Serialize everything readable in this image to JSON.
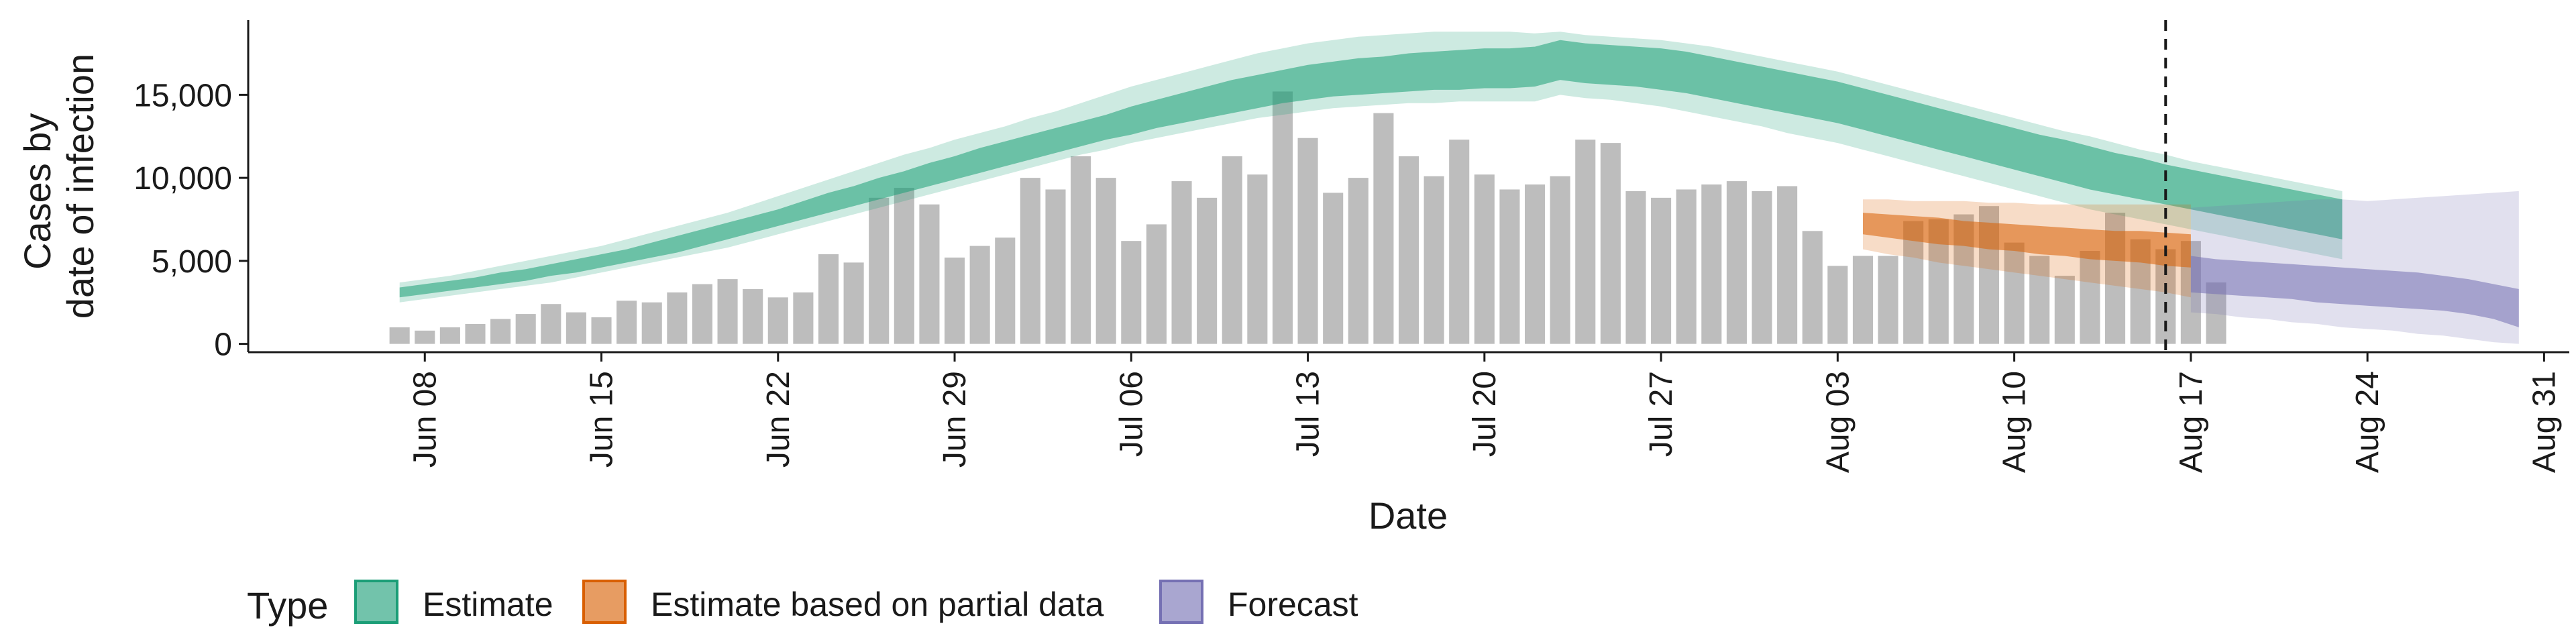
{
  "chart_data": {
    "type": "bar+area",
    "xlabel": "Date",
    "ylabel_lines": [
      "Cases by",
      "date of infection"
    ],
    "x_range": [
      "2020-06-01",
      "2020-09-01"
    ],
    "ylim": [
      -500,
      19500
    ],
    "y_ticks": [
      0,
      5000,
      10000,
      15000
    ],
    "y_tick_labels": [
      "0",
      "5,000",
      "10,000",
      "15,000"
    ],
    "x_ticks": [
      "2020-06-08",
      "2020-06-15",
      "2020-06-22",
      "2020-06-29",
      "2020-07-06",
      "2020-07-13",
      "2020-07-20",
      "2020-07-27",
      "2020-08-03",
      "2020-08-10",
      "2020-08-17",
      "2020-08-24",
      "2020-08-31"
    ],
    "x_tick_labels": [
      "Jun 08",
      "Jun 15",
      "Jun 22",
      "Jun 29",
      "Jul 06",
      "Jul 13",
      "Jul 20",
      "Jul 27",
      "Aug 03",
      "Aug 10",
      "Aug 17",
      "Aug 24",
      "Aug 31"
    ],
    "vline_date": "2020-08-16",
    "grid": false,
    "legend_position": "bottom",
    "legend_title": "Type",
    "colors": {
      "estimate": "#1b9e77",
      "partial": "#d95f02",
      "forecast": "#7570b3",
      "bars": "#bdbdbd",
      "axis": "#1a1a1a"
    },
    "series": [
      {
        "name": "Estimate",
        "color_key": "estimate"
      },
      {
        "name": "Estimate based on partial data",
        "color_key": "partial"
      },
      {
        "name": "Forecast",
        "color_key": "forecast"
      }
    ],
    "bars": {
      "start_date": "2020-06-07",
      "values": [
        1000,
        800,
        1000,
        1200,
        1500,
        1800,
        2400,
        1900,
        1600,
        2600,
        2500,
        3100,
        3600,
        3900,
        3300,
        2800,
        3100,
        5400,
        4900,
        8800,
        9400,
        8400,
        5200,
        5900,
        6400,
        10000,
        9300,
        11300,
        10000,
        6200,
        7200,
        9800,
        8800,
        11300,
        10200,
        15200,
        12400,
        9100,
        10000,
        13900,
        11300,
        10100,
        12300,
        10200,
        9300,
        9600,
        10100,
        12300,
        12100,
        9200,
        8800,
        9300,
        9600,
        9800,
        9200,
        9500,
        6800,
        4700,
        5300,
        5300,
        7400,
        7500,
        7800,
        8300,
        6100,
        5300,
        4100,
        5600,
        7900,
        6300,
        5700,
        6200,
        3700
      ]
    },
    "estimate": {
      "start_date": "2020-06-07",
      "median": [
        3100,
        3300,
        3500,
        3700,
        3900,
        4200,
        4400,
        4700,
        5000,
        5300,
        5600,
        5900,
        6300,
        6700,
        7100,
        7600,
        8000,
        8500,
        8900,
        9400,
        9800,
        10200,
        10700,
        11100,
        11500,
        11900,
        12300,
        12700,
        13100,
        13500,
        13900,
        14300,
        14600,
        14900,
        15200,
        15500,
        15700,
        15900,
        16100,
        16300,
        16400,
        16500,
        16600,
        16700,
        16700,
        16800,
        17200,
        17000,
        16900,
        16800,
        16600,
        16400,
        16100,
        15800,
        15500,
        15200,
        14900,
        14600,
        14200,
        13800,
        13400,
        13000,
        12600,
        12200,
        11800,
        11400,
        11100,
        10700,
        10400,
        10000,
        9700,
        9400,
        9100,
        8800,
        8500,
        8200,
        7900,
        7600
      ],
      "lo50": [
        2800,
        3000,
        3200,
        3400,
        3600,
        3800,
        4100,
        4300,
        4600,
        4900,
        5200,
        5500,
        5900,
        6300,
        6700,
        7100,
        7500,
        7900,
        8300,
        8700,
        9100,
        9500,
        9900,
        10300,
        10700,
        11100,
        11500,
        11900,
        12300,
        12600,
        13000,
        13300,
        13600,
        13900,
        14200,
        14500,
        14700,
        14900,
        15000,
        15100,
        15200,
        15300,
        15300,
        15400,
        15400,
        15500,
        15900,
        15700,
        15600,
        15500,
        15300,
        15100,
        14800,
        14500,
        14200,
        13900,
        13600,
        13300,
        12900,
        12500,
        12100,
        11700,
        11300,
        10900,
        10500,
        10100,
        9700,
        9300,
        9000,
        8700,
        8400,
        8100,
        7800,
        7500,
        7200,
        6900,
        6600,
        6300
      ],
      "hi50": [
        3400,
        3600,
        3800,
        4000,
        4300,
        4500,
        4800,
        5100,
        5400,
        5700,
        6100,
        6500,
        6900,
        7300,
        7700,
        8100,
        8600,
        9100,
        9500,
        10000,
        10400,
        10900,
        11300,
        11800,
        12200,
        12600,
        13000,
        13400,
        13800,
        14300,
        14700,
        15100,
        15500,
        15900,
        16200,
        16500,
        16800,
        17000,
        17200,
        17300,
        17500,
        17600,
        17700,
        17800,
        17800,
        17900,
        18300,
        18100,
        18000,
        17900,
        17800,
        17600,
        17300,
        17000,
        16700,
        16400,
        16100,
        15800,
        15400,
        15000,
        14600,
        14200,
        13800,
        13400,
        13000,
        12600,
        12300,
        11900,
        11500,
        11200,
        10800,
        10500,
        10200,
        9900,
        9600,
        9300,
        9000,
        8700
      ],
      "lo90": [
        2500,
        2700,
        2900,
        3100,
        3300,
        3500,
        3700,
        4000,
        4300,
        4600,
        4900,
        5200,
        5500,
        5800,
        6200,
        6600,
        7000,
        7400,
        7800,
        8200,
        8600,
        9000,
        9400,
        9800,
        10200,
        10600,
        11000,
        11400,
        11700,
        12100,
        12400,
        12700,
        13000,
        13300,
        13600,
        13800,
        14000,
        14200,
        14300,
        14400,
        14500,
        14500,
        14600,
        14600,
        14600,
        14600,
        15000,
        14800,
        14700,
        14500,
        14300,
        14000,
        13700,
        13400,
        13100,
        12700,
        12400,
        12100,
        11700,
        11300,
        10900,
        10500,
        10100,
        9700,
        9300,
        8900,
        8500,
        8100,
        7800,
        7500,
        7200,
        6900,
        6600,
        6300,
        6000,
        5700,
        5400,
        5100
      ],
      "hi90": [
        3700,
        3900,
        4100,
        4400,
        4700,
        5000,
        5300,
        5600,
        5900,
        6300,
        6700,
        7100,
        7500,
        7900,
        8400,
        8900,
        9400,
        9900,
        10400,
        10900,
        11400,
        11800,
        12300,
        12700,
        13100,
        13600,
        14000,
        14500,
        15000,
        15500,
        15900,
        16300,
        16700,
        17100,
        17500,
        17800,
        18100,
        18300,
        18500,
        18600,
        18700,
        18800,
        18800,
        18800,
        18800,
        18700,
        18800,
        18600,
        18500,
        18400,
        18300,
        18100,
        17900,
        17600,
        17300,
        17000,
        16700,
        16400,
        16000,
        15600,
        15200,
        14800,
        14400,
        14000,
        13600,
        13200,
        12800,
        12500,
        12100,
        11700,
        11400,
        11000,
        10700,
        10400,
        10100,
        9800,
        9500,
        9200
      ]
    },
    "partial": {
      "start_date": "2020-08-04",
      "median": [
        7300,
        7100,
        7000,
        6800,
        6700,
        6600,
        6500,
        6300,
        6200,
        6100,
        6000,
        5900,
        5700,
        5600
      ],
      "lo50": [
        6600,
        6400,
        6200,
        6000,
        5900,
        5700,
        5600,
        5400,
        5300,
        5100,
        5000,
        4900,
        4700,
        4600
      ],
      "hi50": [
        7900,
        7800,
        7700,
        7600,
        7400,
        7300,
        7200,
        7100,
        7000,
        6900,
        6800,
        6800,
        6700,
        6600
      ],
      "lo90": [
        5700,
        5400,
        5200,
        4900,
        4700,
        4500,
        4300,
        4100,
        3900,
        3700,
        3500,
        3300,
        3100,
        2800
      ],
      "hi90": [
        8700,
        8700,
        8600,
        8600,
        8600,
        8500,
        8500,
        8400,
        8400,
        8400,
        8400,
        8400,
        8400,
        8400
      ]
    },
    "forecast": {
      "start_date": "2020-08-17",
      "median": [
        4200,
        4100,
        4000,
        3900,
        3800,
        3700,
        3600,
        3500,
        3400,
        3300,
        3200,
        3100,
        3000,
        2900
      ],
      "lo50": [
        3100,
        3000,
        2900,
        2800,
        2700,
        2500,
        2400,
        2300,
        2200,
        2100,
        2000,
        1800,
        1500,
        1000
      ],
      "hi50": [
        5300,
        5100,
        5000,
        4900,
        4800,
        4700,
        4600,
        4500,
        4400,
        4300,
        4100,
        3900,
        3600,
        3300
      ],
      "lo90": [
        1900,
        1800,
        1600,
        1500,
        1300,
        1200,
        1000,
        900,
        800,
        600,
        500,
        300,
        100,
        0
      ],
      "hi90": [
        8200,
        8300,
        8400,
        8500,
        8600,
        8700,
        8700,
        8600,
        8700,
        8800,
        8900,
        9000,
        9100,
        9200
      ]
    }
  }
}
